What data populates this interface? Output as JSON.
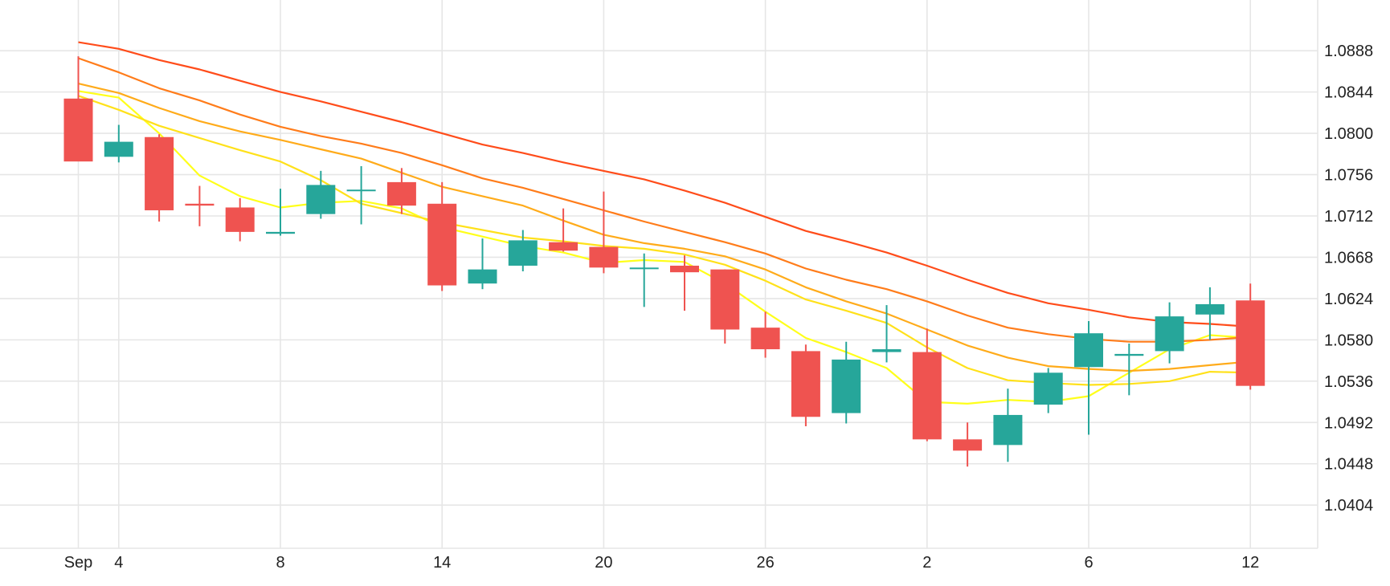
{
  "chart_data": {
    "type": "candlestick",
    "title": "",
    "xlabel": "",
    "ylabel": "",
    "ylim": [
      1.0358,
      1.0942
    ],
    "yticks": [
      1.0404,
      1.0448,
      1.0492,
      1.0536,
      1.058,
      1.0624,
      1.0668,
      1.0712,
      1.0756,
      1.08,
      1.0844,
      1.0888
    ],
    "ytick_labels": [
      "1.0404",
      "1.0448",
      "1.0492",
      "1.0536",
      "1.0580",
      "1.0624",
      "1.0668",
      "1.0712",
      "1.0756",
      "1.0800",
      "1.0844",
      "1.0888"
    ],
    "xticks": [
      {
        "index": 0,
        "label": "Sep"
      },
      {
        "index": 1,
        "label": "4"
      },
      {
        "index": 5,
        "label": "8"
      },
      {
        "index": 9,
        "label": "14"
      },
      {
        "index": 13,
        "label": "20"
      },
      {
        "index": 17,
        "label": "26"
      },
      {
        "index": 21,
        "label": "2"
      },
      {
        "index": 25,
        "label": "6"
      },
      {
        "index": 29,
        "label": "12"
      }
    ],
    "grid": true,
    "colors": {
      "up": "#26a69a",
      "down": "#ef5350",
      "grid": "#e6e6e6",
      "text": "#222222"
    },
    "candles": [
      {
        "o": 1.0837,
        "h": 1.0882,
        "l": 1.0771,
        "c": 1.077
      },
      {
        "o": 1.0775,
        "h": 1.0809,
        "l": 1.0769,
        "c": 1.0791
      },
      {
        "o": 1.0796,
        "h": 1.0799,
        "l": 1.0706,
        "c": 1.0718
      },
      {
        "o": 1.0725,
        "h": 1.0744,
        "l": 1.0701,
        "c": 1.0723
      },
      {
        "o": 1.0721,
        "h": 1.0731,
        "l": 1.0685,
        "c": 1.0695
      },
      {
        "o": 1.0693,
        "h": 1.0741,
        "l": 1.0691,
        "c": 1.0695
      },
      {
        "o": 1.0714,
        "h": 1.076,
        "l": 1.0709,
        "c": 1.0745
      },
      {
        "o": 1.0739,
        "h": 1.0765,
        "l": 1.0703,
        "c": 1.074
      },
      {
        "o": 1.0748,
        "h": 1.0763,
        "l": 1.0714,
        "c": 1.0723
      },
      {
        "o": 1.0725,
        "h": 1.0748,
        "l": 1.0632,
        "c": 1.0638
      },
      {
        "o": 1.064,
        "h": 1.0688,
        "l": 1.0634,
        "c": 1.0655
      },
      {
        "o": 1.0659,
        "h": 1.0697,
        "l": 1.0653,
        "c": 1.0686
      },
      {
        "o": 1.0684,
        "h": 1.072,
        "l": 1.0674,
        "c": 1.0675
      },
      {
        "o": 1.0679,
        "h": 1.0738,
        "l": 1.0651,
        "c": 1.0657
      },
      {
        "o": 1.0657,
        "h": 1.0672,
        "l": 1.0615,
        "c": 1.0657
      },
      {
        "o": 1.0659,
        "h": 1.067,
        "l": 1.0611,
        "c": 1.0652
      },
      {
        "o": 1.0655,
        "h": 1.0655,
        "l": 1.0576,
        "c": 1.0591
      },
      {
        "o": 1.0593,
        "h": 1.061,
        "l": 1.0561,
        "c": 1.057
      },
      {
        "o": 1.0568,
        "h": 1.0575,
        "l": 1.0488,
        "c": 1.0498
      },
      {
        "o": 1.0502,
        "h": 1.0578,
        "l": 1.0491,
        "c": 1.0559
      },
      {
        "o": 1.0567,
        "h": 1.0617,
        "l": 1.0556,
        "c": 1.057
      },
      {
        "o": 1.0567,
        "h": 1.0592,
        "l": 1.0472,
        "c": 1.0474
      },
      {
        "o": 1.0474,
        "h": 1.0492,
        "l": 1.0445,
        "c": 1.0462
      },
      {
        "o": 1.0468,
        "h": 1.0528,
        "l": 1.045,
        "c": 1.05
      },
      {
        "o": 1.0511,
        "h": 1.055,
        "l": 1.0502,
        "c": 1.0545
      },
      {
        "o": 1.0551,
        "h": 1.06,
        "l": 1.0479,
        "c": 1.0587
      },
      {
        "o": 1.0563,
        "h": 1.0576,
        "l": 1.0521,
        "c": 1.0565
      },
      {
        "o": 1.0568,
        "h": 1.062,
        "l": 1.0555,
        "c": 1.0605
      },
      {
        "o": 1.0607,
        "h": 1.0636,
        "l": 1.058,
        "c": 1.0618
      },
      {
        "o": 1.0622,
        "h": 1.064,
        "l": 1.0527,
        "c": 1.0531
      }
    ],
    "series": [
      {
        "color": "#ffff1a",
        "values": [
          1.0845,
          1.0838,
          1.08,
          1.0755,
          1.0733,
          1.0721,
          1.0726,
          1.0728,
          1.072,
          1.07,
          1.069,
          1.068,
          1.0673,
          1.0662,
          1.0665,
          1.0663,
          1.064,
          1.061,
          1.0582,
          1.0567,
          1.055,
          1.0514,
          1.0512,
          1.0516,
          1.0514,
          1.052,
          1.0545,
          1.057,
          1.0585,
          1.0582
        ]
      },
      {
        "color": "#ffe11a",
        "values": [
          1.084,
          1.0825,
          1.0808,
          1.0795,
          1.0782,
          1.077,
          1.075,
          1.0725,
          1.0715,
          1.0705,
          1.0697,
          1.0689,
          1.0685,
          1.068,
          1.0677,
          1.0671,
          1.066,
          1.0643,
          1.0623,
          1.0611,
          1.0598,
          1.0572,
          1.055,
          1.0537,
          1.0534,
          1.0532,
          1.0533,
          1.0536,
          1.0546,
          1.0545
        ]
      },
      {
        "color": "#ffab1a",
        "values": [
          1.0853,
          1.0843,
          1.0827,
          1.0813,
          1.0802,
          1.0793,
          1.0783,
          1.0773,
          1.0758,
          1.0743,
          1.0733,
          1.0723,
          1.0707,
          1.0692,
          1.0683,
          1.0677,
          1.0669,
          1.0655,
          1.0636,
          1.0621,
          1.0608,
          1.0591,
          1.0574,
          1.0561,
          1.0552,
          1.0549,
          1.0547,
          1.0549,
          1.0553,
          1.0557
        ]
      },
      {
        "color": "#ff7c1a",
        "values": [
          1.088,
          1.0865,
          1.0848,
          1.0835,
          1.082,
          1.0807,
          1.0797,
          1.0789,
          1.0779,
          1.0766,
          1.0752,
          1.0742,
          1.073,
          1.0718,
          1.0706,
          1.0695,
          1.0684,
          1.0672,
          1.0656,
          1.0644,
          1.0634,
          1.0621,
          1.0606,
          1.0593,
          1.0586,
          1.0581,
          1.0578,
          1.0578,
          1.058,
          1.0583
        ]
      },
      {
        "color": "#ff4c1a",
        "values": [
          1.0897,
          1.089,
          1.0878,
          1.0868,
          1.0856,
          1.0844,
          1.0834,
          1.0823,
          1.0812,
          1.08,
          1.0788,
          1.0779,
          1.0769,
          1.076,
          1.0751,
          1.0739,
          1.0726,
          1.0711,
          1.0696,
          1.0685,
          1.0673,
          1.0659,
          1.0644,
          1.063,
          1.0619,
          1.0612,
          1.0604,
          1.0599,
          1.0597,
          1.0594
        ]
      }
    ]
  }
}
